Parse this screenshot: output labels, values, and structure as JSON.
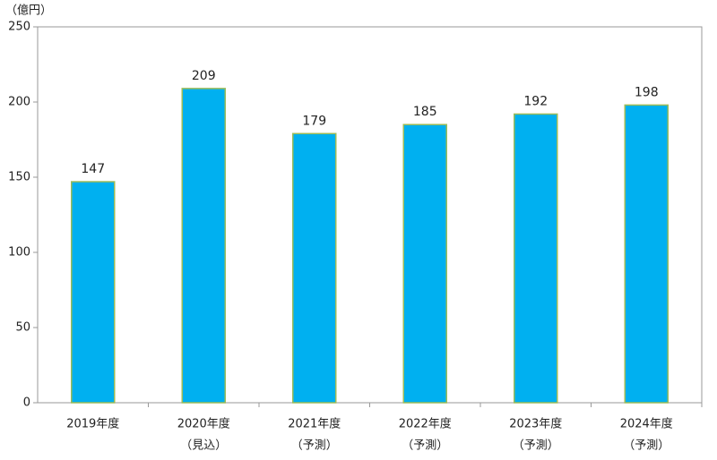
{
  "chart_data": {
    "type": "bar",
    "y_axis_label": "（億円）",
    "categories": [
      [
        "2019年度"
      ],
      [
        "2020年度",
        "（見込）"
      ],
      [
        "2021年度",
        "（予測）"
      ],
      [
        "2022年度",
        "（予測）"
      ],
      [
        "2023年度",
        "（予測）"
      ],
      [
        "2024年度",
        "（予測）"
      ]
    ],
    "values": [
      147,
      209,
      179,
      185,
      192,
      198
    ],
    "color": "#00b0f0",
    "edge_color": "#9bbb59",
    "ylim": [
      0,
      250
    ],
    "yticks": [
      0,
      50,
      100,
      150,
      200,
      250
    ],
    "grid": false
  }
}
